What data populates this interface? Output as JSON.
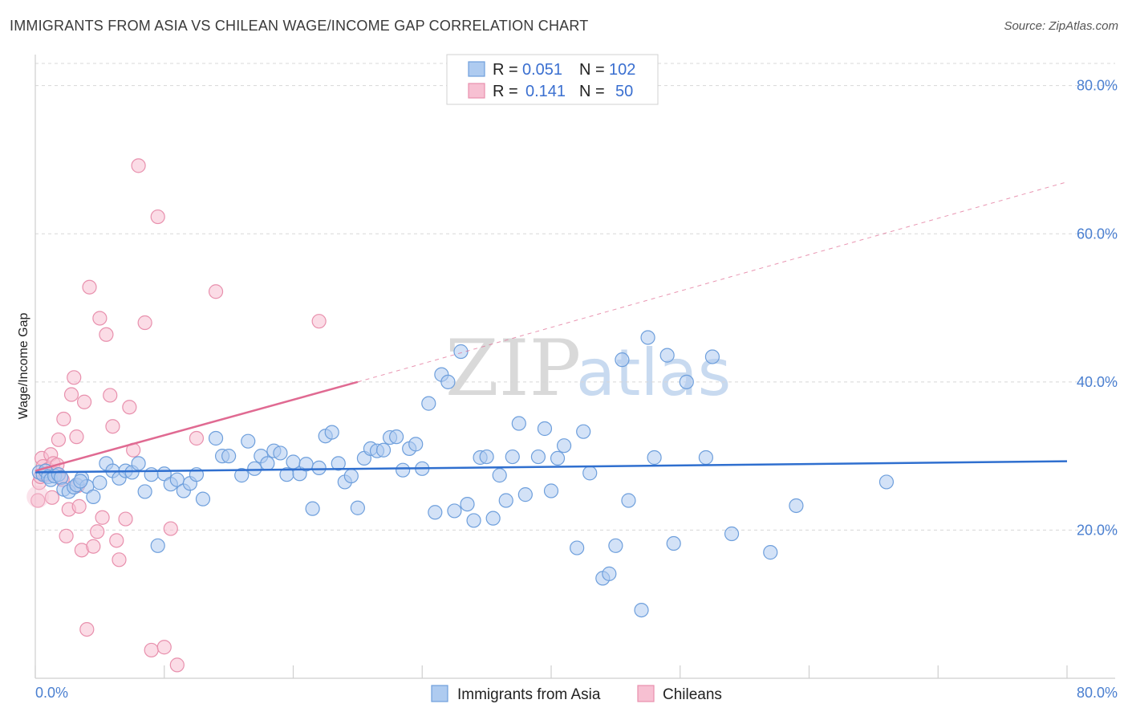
{
  "header": {
    "title": "IMMIGRANTS FROM ASIA VS CHILEAN WAGE/INCOME GAP CORRELATION CHART",
    "source": "Source: ZipAtlas.com"
  },
  "watermark": {
    "part1": "ZIP",
    "part2": "atlas"
  },
  "legend": {
    "rows": [
      {
        "r_label": "R =",
        "r_value": "0.051",
        "n_label": "N =",
        "n_value": "102"
      },
      {
        "r_label": "R =",
        "r_value": "0.141",
        "n_label": "N =",
        "n_value": "50"
      }
    ]
  },
  "bottom_legend": {
    "series1": "Immigrants from Asia",
    "series2": "Chileans"
  },
  "colors": {
    "blue_fill": "#aecbf0",
    "blue_stroke": "#6e9fdc",
    "blue_line": "#2f6fcf",
    "pink_fill": "#f7c0d2",
    "pink_stroke": "#e890ad",
    "pink_line": "#e06a92",
    "grid": "#d8d8d8"
  },
  "chart_data": {
    "type": "scatter",
    "title": "IMMIGRANTS FROM ASIA VS CHILEAN WAGE/INCOME GAP CORRELATION CHART",
    "xlabel": "",
    "ylabel": "Wage/Income Gap",
    "xlim": [
      0,
      80
    ],
    "ylim": [
      0,
      83
    ],
    "x_tick_labels": [
      "0.0%",
      "80.0%"
    ],
    "y_ticks": [
      20,
      40,
      60,
      80
    ],
    "y_tick_labels": [
      "20.0%",
      "40.0%",
      "60.0%",
      "80.0%"
    ],
    "series": [
      {
        "name": "Immigrants from Asia",
        "r": 0.051,
        "n": 102,
        "trend": {
          "x0": 0,
          "y0": 27.8,
          "x1": 80,
          "y1": 29.3
        },
        "points": [
          [
            0.3,
            27.8
          ],
          [
            0.6,
            27.5
          ],
          [
            0.8,
            28.0
          ],
          [
            1.0,
            27.2
          ],
          [
            1.2,
            26.8
          ],
          [
            1.5,
            27.3
          ],
          [
            1.8,
            27.5
          ],
          [
            2.0,
            27.1
          ],
          [
            2.2,
            25.5
          ],
          [
            2.6,
            25.2
          ],
          [
            3.0,
            25.8
          ],
          [
            3.2,
            26.1
          ],
          [
            3.6,
            27.0
          ],
          [
            4.0,
            25.9
          ],
          [
            4.5,
            24.5
          ],
          [
            5.0,
            26.4
          ],
          [
            5.5,
            29.0
          ],
          [
            6.0,
            28.0
          ],
          [
            6.5,
            27.0
          ],
          [
            7.0,
            28.0
          ],
          [
            7.5,
            27.8
          ],
          [
            8.0,
            29.0
          ],
          [
            8.5,
            25.2
          ],
          [
            9.0,
            27.5
          ],
          [
            9.5,
            17.9
          ],
          [
            10.0,
            27.6
          ],
          [
            10.5,
            26.2
          ],
          [
            11.0,
            26.8
          ],
          [
            11.5,
            25.3
          ],
          [
            12.0,
            26.3
          ],
          [
            12.5,
            27.5
          ],
          [
            13.0,
            24.2
          ],
          [
            14.0,
            32.4
          ],
          [
            14.5,
            30.0
          ],
          [
            15.0,
            30.0
          ],
          [
            16.0,
            27.4
          ],
          [
            16.5,
            32.0
          ],
          [
            17.0,
            28.3
          ],
          [
            17.5,
            30.0
          ],
          [
            18.0,
            29.0
          ],
          [
            18.5,
            30.7
          ],
          [
            19.0,
            30.4
          ],
          [
            19.5,
            27.5
          ],
          [
            20.0,
            29.2
          ],
          [
            20.5,
            27.6
          ],
          [
            21.0,
            28.9
          ],
          [
            21.5,
            22.9
          ],
          [
            22.0,
            28.4
          ],
          [
            22.5,
            32.7
          ],
          [
            23.0,
            33.2
          ],
          [
            23.5,
            29.0
          ],
          [
            24.0,
            26.5
          ],
          [
            24.5,
            27.3
          ],
          [
            25.0,
            23.0
          ],
          [
            25.5,
            29.7
          ],
          [
            26.0,
            31.0
          ],
          [
            26.5,
            30.7
          ],
          [
            27.0,
            30.8
          ],
          [
            27.5,
            32.5
          ],
          [
            28.0,
            32.6
          ],
          [
            28.5,
            28.1
          ],
          [
            29.0,
            31.0
          ],
          [
            29.5,
            31.6
          ],
          [
            30.0,
            28.3
          ],
          [
            30.5,
            37.1
          ],
          [
            31.0,
            22.4
          ],
          [
            31.5,
            41.0
          ],
          [
            32.0,
            40.0
          ],
          [
            32.5,
            22.6
          ],
          [
            33.0,
            44.1
          ],
          [
            33.5,
            23.5
          ],
          [
            34.0,
            21.3
          ],
          [
            34.5,
            29.8
          ],
          [
            35.0,
            29.9
          ],
          [
            35.5,
            21.6
          ],
          [
            36.0,
            27.4
          ],
          [
            36.5,
            24.0
          ],
          [
            37.0,
            29.9
          ],
          [
            37.5,
            34.4
          ],
          [
            38.0,
            24.8
          ],
          [
            39.0,
            29.9
          ],
          [
            39.5,
            33.7
          ],
          [
            40.0,
            25.3
          ],
          [
            40.5,
            29.7
          ],
          [
            41.0,
            31.4
          ],
          [
            42.0,
            17.6
          ],
          [
            42.5,
            33.3
          ],
          [
            43.0,
            27.7
          ],
          [
            44.0,
            13.5
          ],
          [
            44.5,
            14.1
          ],
          [
            45.0,
            17.9
          ],
          [
            45.5,
            43.0
          ],
          [
            46.0,
            24.0
          ],
          [
            47.0,
            9.2
          ],
          [
            47.5,
            46.0
          ],
          [
            48.0,
            29.8
          ],
          [
            49.0,
            43.6
          ],
          [
            49.5,
            18.2
          ],
          [
            50.5,
            40.0
          ],
          [
            52.0,
            29.8
          ],
          [
            52.5,
            43.4
          ],
          [
            54.0,
            19.5
          ],
          [
            57.0,
            17.0
          ],
          [
            59.0,
            23.3
          ],
          [
            66.0,
            26.5
          ],
          [
            3.5,
            26.6
          ]
        ]
      },
      {
        "name": "Chileans",
        "r": 0.141,
        "n": 50,
        "trend": {
          "x0": 0,
          "y0": 28.0,
          "x1": 25,
          "y1": 40.0
        },
        "trend_ext": {
          "x0": 25,
          "y0": 40.0,
          "x1": 80,
          "y1": 67.0
        },
        "points": [
          [
            0.2,
            24.0
          ],
          [
            0.3,
            26.4
          ],
          [
            0.4,
            27.2
          ],
          [
            0.5,
            29.7
          ],
          [
            0.6,
            28.6
          ],
          [
            0.8,
            27.4
          ],
          [
            1.0,
            28.2
          ],
          [
            1.2,
            30.2
          ],
          [
            1.4,
            29.0
          ],
          [
            1.6,
            27.6
          ],
          [
            1.8,
            32.2
          ],
          [
            2.0,
            27.0
          ],
          [
            2.2,
            35.0
          ],
          [
            2.4,
            19.2
          ],
          [
            2.6,
            22.8
          ],
          [
            2.8,
            38.3
          ],
          [
            3.0,
            40.6
          ],
          [
            3.2,
            32.6
          ],
          [
            3.4,
            23.2
          ],
          [
            3.6,
            17.3
          ],
          [
            3.8,
            37.3
          ],
          [
            4.0,
            6.6
          ],
          [
            4.2,
            52.8
          ],
          [
            4.5,
            17.8
          ],
          [
            4.8,
            19.8
          ],
          [
            5.0,
            48.6
          ],
          [
            5.2,
            21.7
          ],
          [
            5.5,
            46.4
          ],
          [
            5.8,
            38.2
          ],
          [
            6.0,
            34.0
          ],
          [
            6.3,
            18.6
          ],
          [
            6.5,
            16.0
          ],
          [
            7.0,
            21.5
          ],
          [
            7.3,
            36.6
          ],
          [
            7.6,
            30.8
          ],
          [
            8.0,
            69.2
          ],
          [
            8.5,
            48.0
          ],
          [
            9.0,
            3.8
          ],
          [
            9.5,
            62.3
          ],
          [
            10.0,
            4.2
          ],
          [
            10.5,
            20.2
          ],
          [
            11.0,
            1.8
          ],
          [
            12.5,
            32.4
          ],
          [
            14.0,
            52.2
          ],
          [
            22.0,
            48.2
          ],
          [
            1.3,
            24.4
          ],
          [
            2.1,
            26.8
          ],
          [
            0.9,
            27.6
          ],
          [
            1.7,
            28.8
          ],
          [
            3.3,
            26.0
          ]
        ]
      }
    ]
  }
}
